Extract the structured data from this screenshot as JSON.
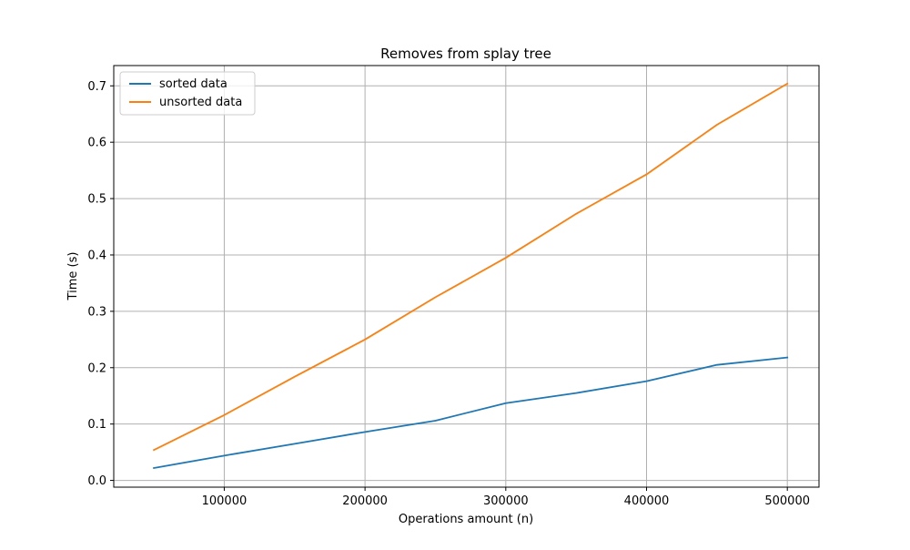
{
  "chart_data": {
    "type": "line",
    "title": "Removes from splay tree",
    "xlabel": "Operations amount (n)",
    "ylabel": "Time (s)",
    "x": [
      50000,
      100000,
      150000,
      200000,
      250000,
      300000,
      350000,
      400000,
      450000,
      500000
    ],
    "xticks": [
      "100000",
      "200000",
      "300000",
      "400000",
      "500000"
    ],
    "yticks": [
      "0.0",
      "0.1",
      "0.2",
      "0.3",
      "0.4",
      "0.5",
      "0.6",
      "0.7"
    ],
    "xlim": [
      21500,
      522500
    ],
    "ylim": [
      -0.012,
      0.736
    ],
    "grid": true,
    "legend_position": "top-left",
    "series": [
      {
        "name": "sorted data",
        "color": "#1f77b4",
        "values": [
          0.022,
          0.044,
          0.065,
          0.086,
          0.106,
          0.137,
          0.155,
          0.176,
          0.205,
          0.218
        ]
      },
      {
        "name": "unsorted data",
        "color": "#ff7f0e",
        "values": [
          0.054,
          0.116,
          0.184,
          0.25,
          0.325,
          0.395,
          0.473,
          0.543,
          0.631,
          0.704
        ]
      }
    ]
  }
}
